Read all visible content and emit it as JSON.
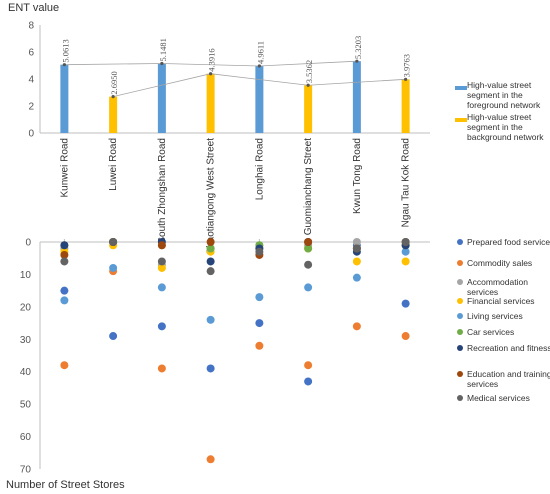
{
  "chart_data": [
    {
      "type": "bar",
      "ylabel": "ENT value",
      "ylim": [
        0,
        8
      ],
      "yticks": [
        0,
        2,
        4,
        6,
        8
      ],
      "categories": [
        "Kunwei Road",
        "Luwei Road",
        "South Zhongshan Road",
        "Chaotiangong West Street",
        "Longhai Road",
        "Guomianchang Street",
        "Kwun Tong Road",
        "Ngau Tau Kok Road"
      ],
      "values": [
        5.0613,
        2.695,
        5.1481,
        4.3916,
        4.9611,
        3.5362,
        5.3203,
        3.9763
      ],
      "value_labels": [
        "5.0613",
        "2.6950",
        "5.1481",
        "4.3916",
        "4.9611",
        "3.5362",
        "5.3203",
        "3.9763"
      ],
      "bar_groups": [
        "foreground",
        "background",
        "foreground",
        "background",
        "foreground",
        "background",
        "foreground",
        "background"
      ],
      "legend": [
        {
          "key": "foreground",
          "name": "High-value street segment in the foreground network",
          "color": "#5B9BD5"
        },
        {
          "key": "background",
          "name": "High-value street segment in the background network",
          "color": "#FFC000"
        }
      ],
      "line_color": "#A5A5A5",
      "grid": false
    },
    {
      "type": "scatter",
      "xlabel": "Number of  Street Stores",
      "ylim": [
        0,
        70
      ],
      "yticks": [
        0,
        10,
        20,
        30,
        40,
        50,
        60,
        70
      ],
      "y_inverted": true,
      "categories": [
        "Kunwei Road",
        "Luwei Road",
        "South Zhongshan Road",
        "Chaotiangong West Street",
        "Longhai Road",
        "Guomianchang Street",
        "Kwun Tong Road",
        "Ngau Tau Kok Road"
      ],
      "series": [
        {
          "name": "Prepared food services",
          "color": "#4472C4",
          "values": [
            15,
            29,
            26,
            39,
            25,
            43,
            1,
            19
          ]
        },
        {
          "name": "Commodity sales",
          "color": "#ED7D31",
          "values": [
            38,
            9,
            39,
            67,
            32,
            38,
            26,
            29
          ]
        },
        {
          "name": "Accommodation services",
          "color": "#A5A5A5",
          "values": [
            2,
            0,
            7,
            2,
            1,
            1,
            0,
            1
          ]
        },
        {
          "name": "Financial services",
          "color": "#FFC000",
          "values": [
            3,
            1,
            8,
            3,
            2,
            2,
            6,
            6
          ]
        },
        {
          "name": "Living services",
          "color": "#5B9BD5",
          "values": [
            18,
            8,
            14,
            24,
            17,
            14,
            11,
            3
          ]
        },
        {
          "name": "Car services",
          "color": "#70AD47",
          "values": [
            1,
            0,
            1,
            2,
            1,
            2,
            2,
            1
          ]
        },
        {
          "name": "Recreation and fitness",
          "color": "#264478",
          "values": [
            1,
            0,
            0,
            6,
            2,
            0,
            3,
            1
          ]
        },
        {
          "name": "Education and training services",
          "color": "#9E480E",
          "values": [
            4,
            0,
            1,
            0,
            4,
            0,
            2,
            0
          ]
        },
        {
          "name": "Medical services",
          "color": "#636363",
          "values": [
            6,
            0,
            6,
            9,
            3,
            7,
            2,
            0
          ]
        }
      ],
      "grid": false
    }
  ]
}
